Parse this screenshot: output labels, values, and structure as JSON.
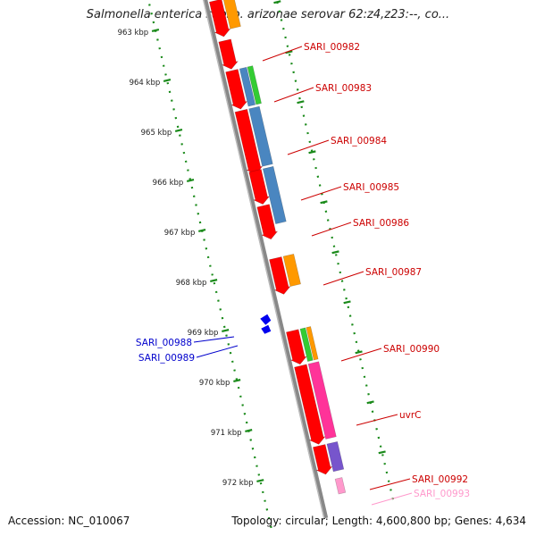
{
  "title": "Salmonella enterica subsp. arizonae serovar 62:z4,z23:--, co...",
  "footer": {
    "accession": "Accession: NC_010067",
    "topology": "Topology: circular; Length: 4,600,800 bp; Genes: 4,634"
  },
  "colors": {
    "forward_cds": "#ff0000",
    "orange": "#ff9900",
    "blue": "#4a86c0",
    "green": "#33cc33",
    "magenta": "#ff3399",
    "purple": "#7755cc",
    "pink": "#ff99cc",
    "backbone": "#888888",
    "tick_green": "#1a8a1a",
    "label_red": "#cc0000",
    "label_blue": "#0000cc",
    "label_pink": "#ff99cc"
  },
  "ticks": [
    {
      "kbp": 963,
      "label": "963 kbp"
    },
    {
      "kbp": 964,
      "label": "964 kbp"
    },
    {
      "kbp": 965,
      "label": "965 kbp"
    },
    {
      "kbp": 966,
      "label": "966 kbp"
    },
    {
      "kbp": 967,
      "label": "967 kbp"
    },
    {
      "kbp": 968,
      "label": "968 kbp"
    },
    {
      "kbp": 969,
      "label": "969 kbp"
    },
    {
      "kbp": 970,
      "label": "970 kbp"
    },
    {
      "kbp": 971,
      "label": "971 kbp"
    },
    {
      "kbp": 972,
      "label": "972 kbp"
    }
  ],
  "gene_labels": [
    {
      "name": "SARI_00982",
      "color": "label_red"
    },
    {
      "name": "SARI_00983",
      "color": "label_red"
    },
    {
      "name": "SARI_00984",
      "color": "label_red"
    },
    {
      "name": "SARI_00985",
      "color": "label_red"
    },
    {
      "name": "SARI_00986",
      "color": "label_red"
    },
    {
      "name": "SARI_00987",
      "color": "label_red"
    },
    {
      "name": "SARI_00990",
      "color": "label_red"
    },
    {
      "name": "uvrC",
      "color": "label_red"
    },
    {
      "name": "SARI_00992",
      "color": "label_red"
    },
    {
      "name": "SARI_00993",
      "color": "label_pink"
    },
    {
      "name": "SARI_00988",
      "color": "label_blue"
    },
    {
      "name": "SARI_00989",
      "color": "label_blue"
    }
  ]
}
